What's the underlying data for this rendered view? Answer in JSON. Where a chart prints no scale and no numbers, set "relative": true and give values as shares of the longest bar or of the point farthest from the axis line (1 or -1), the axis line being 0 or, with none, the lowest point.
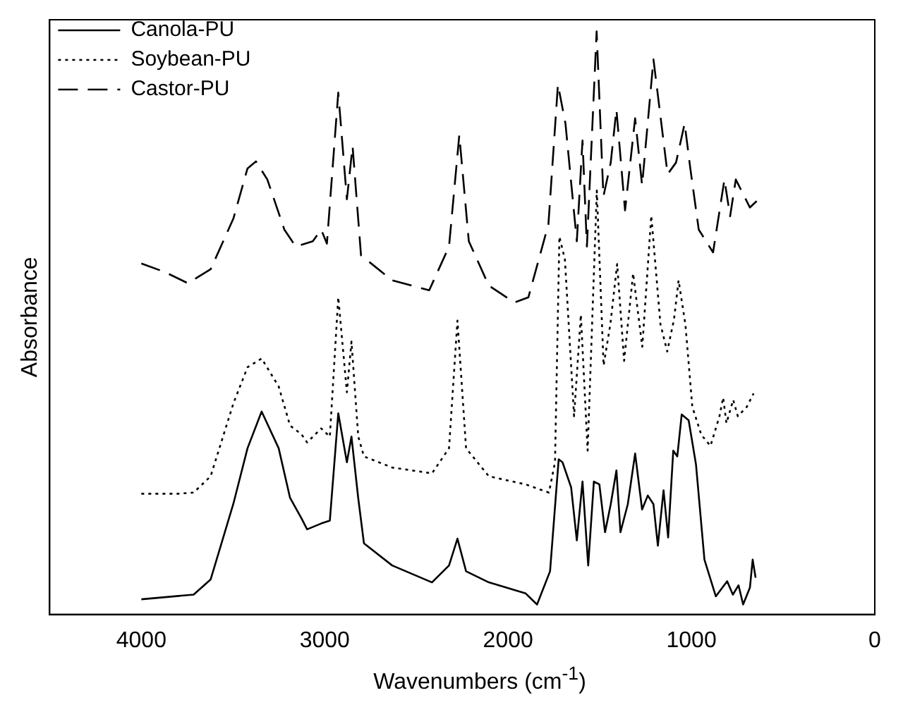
{
  "chart_data": {
    "type": "line",
    "xlabel": "Wavenumbers (cm$^{-1}$)",
    "ylabel": "Absorbance",
    "relative": true,
    "xlim": [
      4500,
      0
    ],
    "xticks": [
      4000,
      3000,
      2000,
      1000,
      0
    ],
    "tick_labels": "x",
    "grid": false,
    "legend": "top left",
    "marker": "none",
    "series": [
      {
        "name": "Canola-PU",
        "color": "#000000",
        "line_style": "solid",
        "x": [
          4000,
          3715,
          3622,
          3498,
          3421,
          3344,
          3251,
          3189,
          3127,
          3096,
          3019,
          2972,
          2926,
          2879,
          2854,
          2817,
          2786,
          2632,
          2415,
          2322,
          2276,
          2229,
          2105,
          1904,
          1842,
          1771,
          1724,
          1703,
          1656,
          1625,
          1594,
          1563,
          1532,
          1502,
          1471,
          1440,
          1409,
          1387,
          1347,
          1307,
          1269,
          1238,
          1207,
          1183,
          1152,
          1127,
          1099,
          1077,
          1053,
          1015,
          975,
          929,
          867,
          805,
          774,
          743,
          718,
          681,
          666,
          650
        ],
        "values": [
          0.026,
          0.034,
          0.06,
          0.19,
          0.285,
          0.348,
          0.285,
          0.2,
          0.165,
          0.146,
          0.156,
          0.161,
          0.345,
          0.261,
          0.305,
          0.199,
          0.122,
          0.084,
          0.055,
          0.084,
          0.13,
          0.074,
          0.055,
          0.036,
          0.017,
          0.074,
          0.266,
          0.261,
          0.218,
          0.127,
          0.228,
          0.084,
          0.228,
          0.223,
          0.141,
          0.189,
          0.247,
          0.141,
          0.189,
          0.276,
          0.18,
          0.204,
          0.189,
          0.118,
          0.213,
          0.132,
          0.281,
          0.271,
          0.343,
          0.333,
          0.257,
          0.094,
          0.031,
          0.057,
          0.034,
          0.05,
          0.017,
          0.046,
          0.094,
          0.063
        ]
      },
      {
        "name": "Soybean-PU",
        "color": "#000000",
        "line_style": "dotted",
        "x": [
          4000,
          3800,
          3715,
          3622,
          3498,
          3421,
          3344,
          3251,
          3189,
          3127,
          3096,
          3019,
          2972,
          2926,
          2879,
          2854,
          2817,
          2786,
          2632,
          2415,
          2322,
          2276,
          2229,
          2105,
          1904,
          1777,
          1744,
          1720,
          1690,
          1640,
          1603,
          1566,
          1516,
          1479,
          1442,
          1405,
          1367,
          1318,
          1268,
          1219,
          1169,
          1132,
          1095,
          1070,
          1033,
          995,
          946,
          896,
          847,
          827,
          809,
          772,
          747,
          698,
          661
        ],
        "values": [
          0.207,
          0.207,
          0.209,
          0.237,
          0.362,
          0.424,
          0.439,
          0.391,
          0.324,
          0.309,
          0.295,
          0.319,
          0.305,
          0.544,
          0.381,
          0.468,
          0.305,
          0.271,
          0.252,
          0.242,
          0.285,
          0.504,
          0.285,
          0.237,
          0.223,
          0.209,
          0.261,
          0.648,
          0.609,
          0.34,
          0.514,
          0.281,
          0.727,
          0.427,
          0.498,
          0.601,
          0.435,
          0.585,
          0.459,
          0.684,
          0.498,
          0.451,
          0.506,
          0.573,
          0.498,
          0.356,
          0.308,
          0.289,
          0.34,
          0.372,
          0.328,
          0.368,
          0.34,
          0.356,
          0.379
        ]
      },
      {
        "name": "Castor-PU",
        "color": "#000000",
        "line_style": "dashed",
        "x": [
          4000,
          3870,
          3746,
          3622,
          3498,
          3421,
          3375,
          3313,
          3220,
          3158,
          3065,
          3019,
          2988,
          2926,
          2879,
          2848,
          2802,
          2632,
          2430,
          2322,
          2266,
          2214,
          2105,
          1966,
          1889,
          1780,
          1728,
          1687,
          1625,
          1594,
          1570,
          1517,
          1480,
          1440,
          1409,
          1362,
          1307,
          1269,
          1207,
          1130,
          1084,
          1037,
          1006,
          960,
          882,
          820,
          789,
          758,
          681,
          644
        ],
        "values": [
          0.602,
          0.587,
          0.568,
          0.592,
          0.679,
          0.765,
          0.777,
          0.746,
          0.66,
          0.631,
          0.64,
          0.66,
          0.636,
          0.895,
          0.712,
          0.803,
          0.616,
          0.573,
          0.556,
          0.631,
          0.822,
          0.64,
          0.564,
          0.535,
          0.544,
          0.669,
          0.909,
          0.842,
          0.64,
          0.813,
          0.631,
          1.0,
          0.717,
          0.775,
          0.866,
          0.693,
          0.851,
          0.736,
          0.952,
          0.755,
          0.775,
          0.842,
          0.765,
          0.66,
          0.621,
          0.746,
          0.683,
          0.746,
          0.698,
          0.709
        ]
      }
    ]
  }
}
